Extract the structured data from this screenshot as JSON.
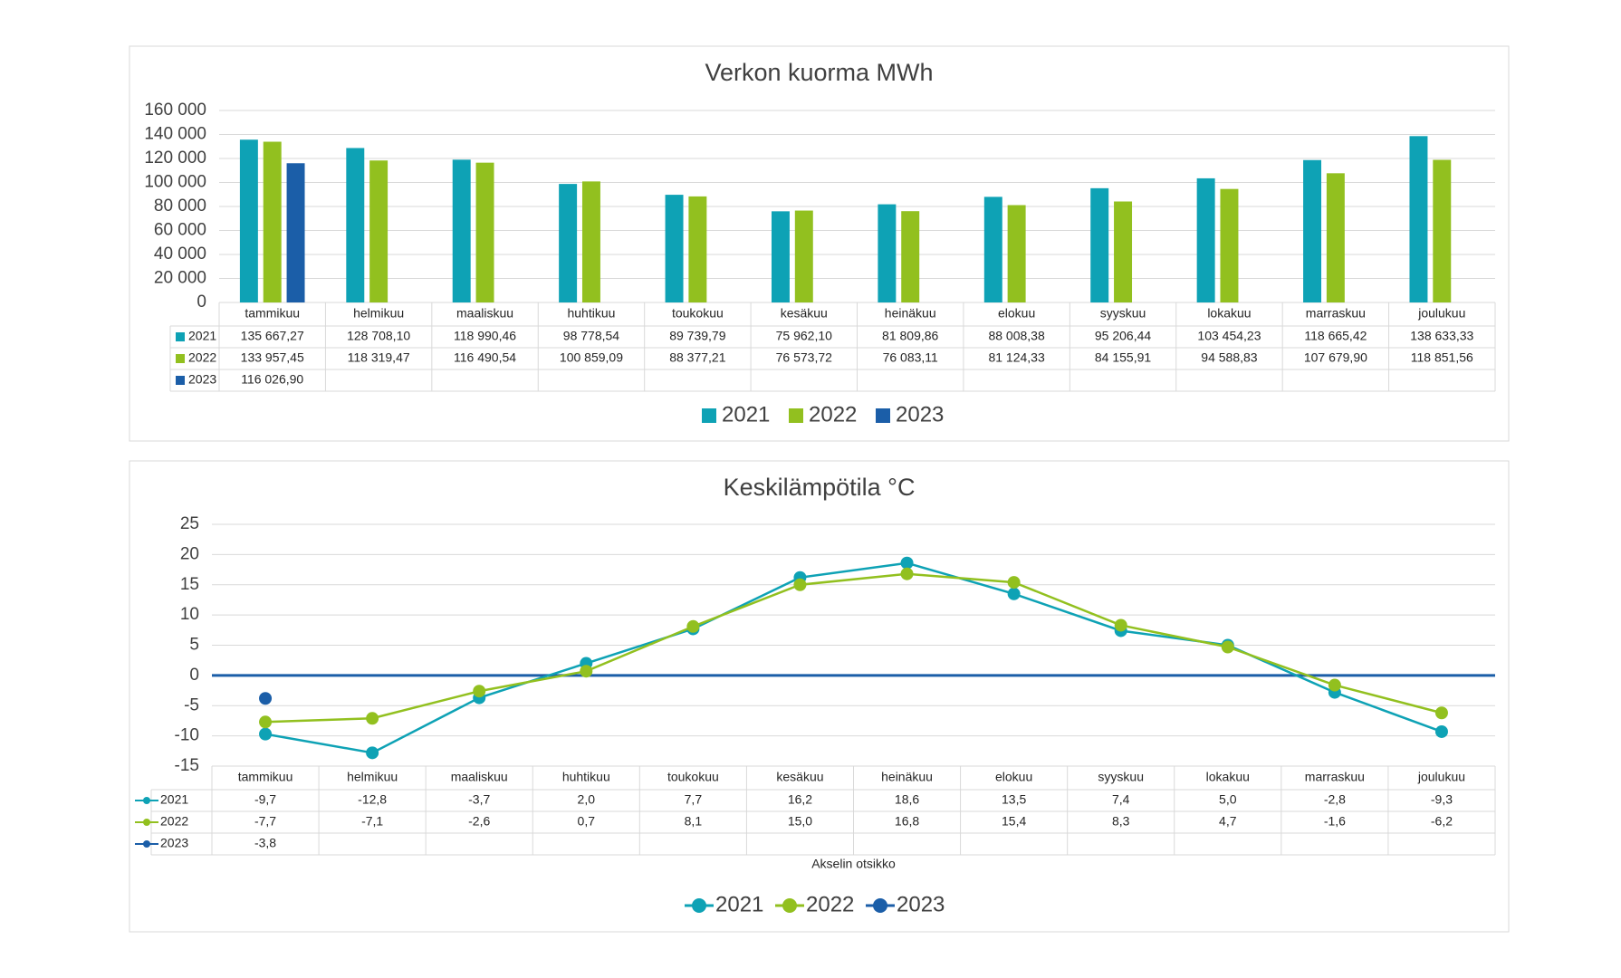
{
  "chart_data": [
    {
      "type": "bar",
      "title": "Verkon kuorma MWh",
      "categories": [
        "tammikuu",
        "helmikuu",
        "maaliskuu",
        "huhtikuu",
        "toukokuu",
        "kesäkuu",
        "heinäkuu",
        "elokuu",
        "syyskuu",
        "lokakuu",
        "marraskuu",
        "joulukuu"
      ],
      "series": [
        {
          "name": "2021",
          "color": "#0ea2b5",
          "values": [
            135667.27,
            128708.1,
            118990.46,
            98778.54,
            89739.79,
            75962.1,
            81809.86,
            88008.38,
            95206.44,
            103454.23,
            118665.42,
            138633.33
          ],
          "value_labels": [
            "135 667,27",
            "128 708,10",
            "118 990,46",
            "98 778,54",
            "89 739,79",
            "75 962,10",
            "81 809,86",
            "88 008,38",
            "95 206,44",
            "103 454,23",
            "118 665,42",
            "138 633,33"
          ]
        },
        {
          "name": "2022",
          "color": "#92c01f",
          "values": [
            133957.45,
            118319.47,
            116490.54,
            100859.09,
            88377.21,
            76573.72,
            76083.11,
            81124.33,
            84155.91,
            94588.83,
            107679.9,
            118851.56
          ],
          "value_labels": [
            "133 957,45",
            "118 319,47",
            "116 490,54",
            "100 859,09",
            "88 377,21",
            "76 573,72",
            "76 083,11",
            "81 124,33",
            "84 155,91",
            "94 588,83",
            "107 679,90",
            "118 851,56"
          ]
        },
        {
          "name": "2023",
          "color": "#1b5ea8",
          "values": [
            116026.9,
            null,
            null,
            null,
            null,
            null,
            null,
            null,
            null,
            null,
            null,
            null
          ],
          "value_labels": [
            "116 026,90",
            null,
            null,
            null,
            null,
            null,
            null,
            null,
            null,
            null,
            null,
            null
          ]
        }
      ],
      "ylim": [
        0,
        160000
      ],
      "yticks": [
        0,
        {
          "value": 20000,
          "label": "20 000"
        },
        {
          "value": 40000,
          "label": "40 000"
        },
        {
          "value": 60000,
          "label": "60 000"
        },
        {
          "value": 80000,
          "label": "80 000"
        },
        {
          "value": 100000,
          "label": "100 000"
        },
        {
          "value": 120000,
          "label": "120 000"
        },
        {
          "value": 140000,
          "label": "140 000"
        },
        {
          "value": 160000,
          "label": "160 000"
        }
      ],
      "grid": true,
      "legend": "bottom"
    },
    {
      "type": "line",
      "title": "Keskilämpötila °C",
      "x_label": "Akselin otsikko",
      "categories": [
        "tammikuu",
        "helmikuu",
        "maaliskuu",
        "huhtikuu",
        "toukokuu",
        "kesäkuu",
        "heinäkuu",
        "elokuu",
        "syyskuu",
        "lokakuu",
        "marraskuu",
        "joulukuu"
      ],
      "series": [
        {
          "name": "2021",
          "color": "#0ea2b5",
          "values": [
            -9.7,
            -12.8,
            -3.7,
            2.0,
            7.7,
            16.2,
            18.6,
            13.5,
            7.4,
            5.0,
            -2.8,
            -9.3
          ],
          "value_labels": [
            "-9,7",
            "-12,8",
            "-3,7",
            "2,0",
            "7,7",
            "16,2",
            "18,6",
            "13,5",
            "7,4",
            "5,0",
            "-2,8",
            "-9,3"
          ]
        },
        {
          "name": "2022",
          "color": "#92c01f",
          "values": [
            -7.7,
            -7.1,
            -2.6,
            0.7,
            8.1,
            15.0,
            16.8,
            15.4,
            8.3,
            4.7,
            -1.6,
            -6.2
          ],
          "value_labels": [
            "-7,7",
            "-7,1",
            "-2,6",
            "0,7",
            "8,1",
            "15,0",
            "16,8",
            "15,4",
            "8,3",
            "4,7",
            "-1,6",
            "-6,2"
          ]
        },
        {
          "name": "2023",
          "color": "#1b5ea8",
          "values": [
            -3.8,
            null,
            null,
            null,
            null,
            null,
            null,
            null,
            null,
            null,
            null,
            null
          ],
          "value_labels": [
            "-3,8",
            null,
            null,
            null,
            null,
            null,
            null,
            null,
            null,
            null,
            null,
            null
          ]
        }
      ],
      "ylim": [
        -15,
        25
      ],
      "yticks": [
        -15,
        -10,
        -5,
        0,
        5,
        10,
        15,
        20,
        25
      ],
      "grid": true,
      "legend": "bottom"
    }
  ]
}
